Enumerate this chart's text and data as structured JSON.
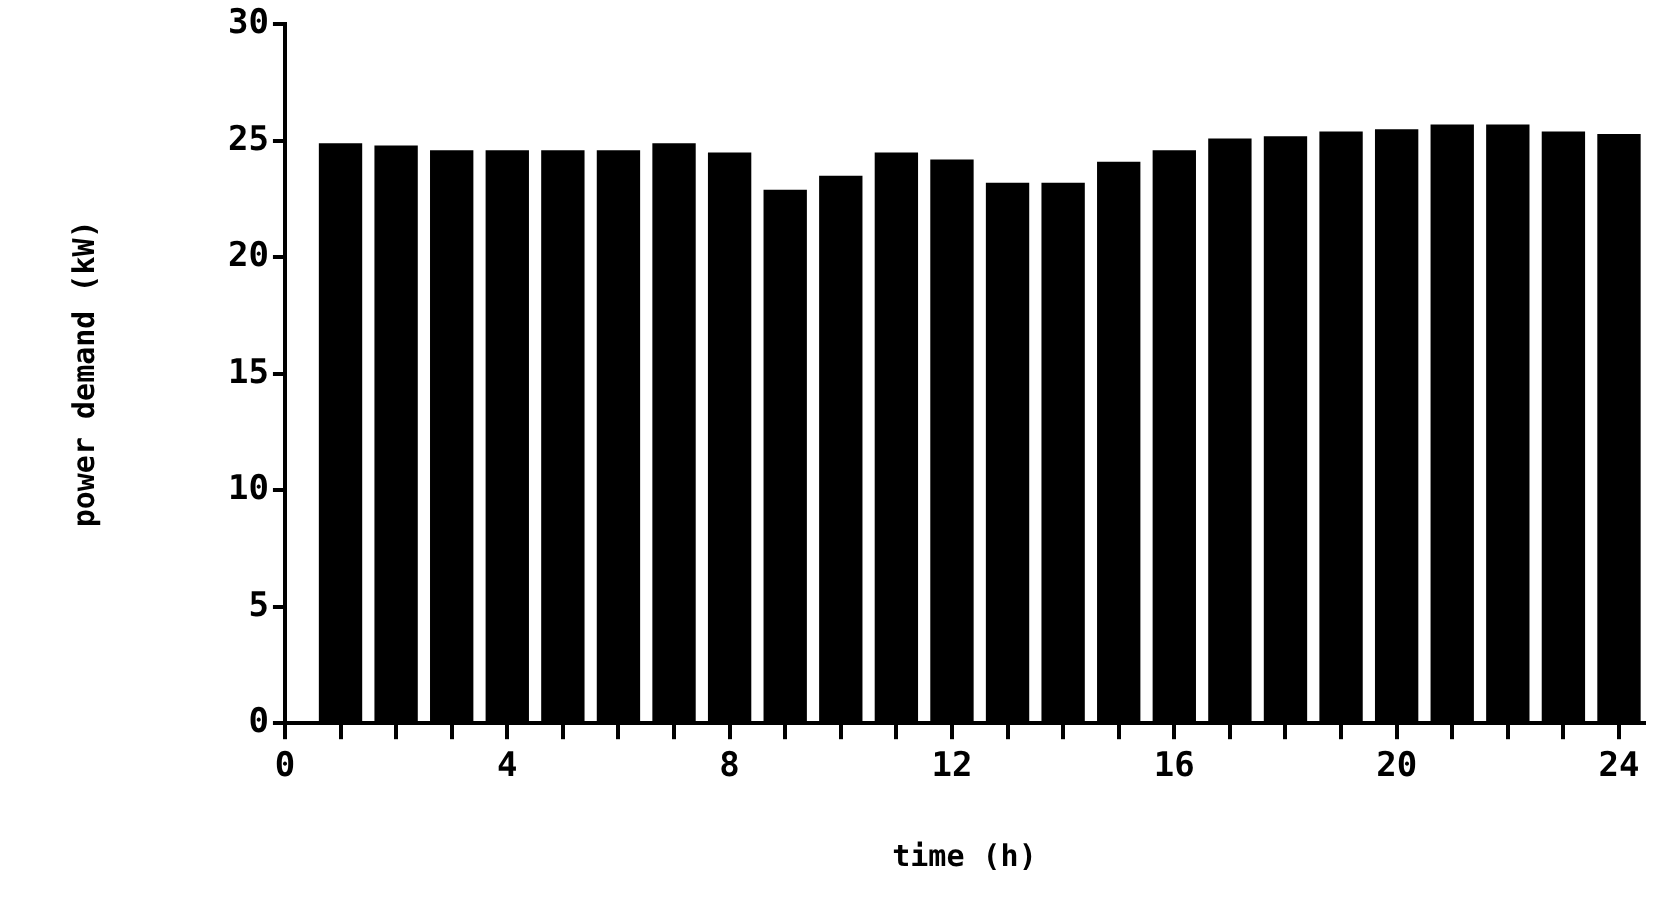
{
  "chart_data": {
    "type": "bar",
    "xlabel": "time (h)",
    "ylabel": "power demand (kW)",
    "x": [
      1,
      2,
      3,
      4,
      5,
      6,
      7,
      8,
      9,
      10,
      11,
      12,
      13,
      14,
      15,
      16,
      17,
      18,
      19,
      20,
      21,
      22,
      23,
      24
    ],
    "values": [
      24.9,
      24.8,
      24.6,
      24.6,
      24.6,
      24.6,
      24.9,
      24.5,
      22.9,
      23.5,
      24.5,
      24.2,
      23.2,
      23.2,
      24.1,
      24.6,
      25.1,
      25.2,
      25.4,
      25.5,
      25.7,
      25.7,
      25.4,
      25.3
    ],
    "color": "#000000",
    "xlim": [
      0,
      24.45
    ],
    "xticks": [
      0,
      {
        "value": 1,
        "label": null
      },
      {
        "value": 2,
        "label": null
      },
      {
        "value": 3,
        "label": null
      },
      4,
      {
        "value": 5,
        "label": null
      },
      {
        "value": 6,
        "label": null
      },
      {
        "value": 7,
        "label": null
      },
      8,
      {
        "value": 9,
        "label": null
      },
      {
        "value": 10,
        "label": null
      },
      {
        "value": 11,
        "label": null
      },
      12,
      {
        "value": 13,
        "label": null
      },
      {
        "value": 14,
        "label": null
      },
      {
        "value": 15,
        "label": null
      },
      16,
      {
        "value": 17,
        "label": null
      },
      {
        "value": 18,
        "label": null
      },
      {
        "value": 19,
        "label": null
      },
      20,
      {
        "value": 21,
        "label": null
      },
      {
        "value": 22,
        "label": null
      },
      {
        "value": 23,
        "label": null
      },
      24
    ],
    "ylim": [
      0,
      30
    ],
    "yticks": [
      0,
      5,
      10,
      15,
      20,
      25,
      30
    ],
    "grid": false,
    "legend": false
  }
}
